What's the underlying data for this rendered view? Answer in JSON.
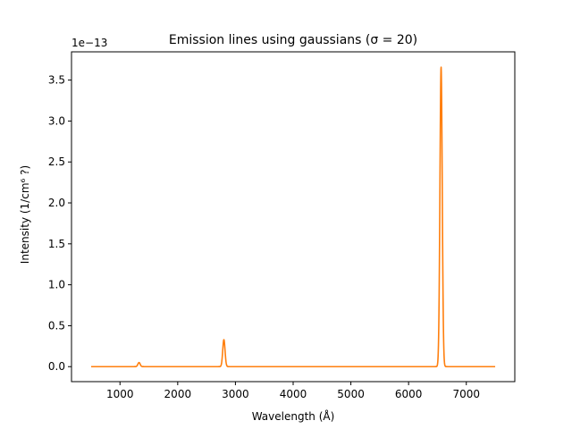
{
  "chart_data": {
    "type": "line",
    "title": "Emission lines using gaussians (σ = 20)",
    "xlabel": "Wavelength (Å)",
    "ylabel": "Intensity (1/cm⁶ ?)",
    "y_offset_label": "1e−13",
    "xlim": [
      160,
      7840
    ],
    "ylim": [
      -0.183,
      3.845
    ],
    "x_ticks": [
      1000,
      2000,
      3000,
      4000,
      5000,
      6000,
      7000
    ],
    "x_tick_labels": [
      "1000",
      "2000",
      "3000",
      "4000",
      "5000",
      "6000",
      "7000"
    ],
    "y_ticks": [
      0.0,
      0.5,
      1.0,
      1.5,
      2.0,
      2.5,
      3.0,
      3.5
    ],
    "y_tick_labels": [
      "0.0",
      "0.5",
      "1.0",
      "1.5",
      "2.0",
      "2.5",
      "3.0",
      "3.5"
    ],
    "grid": false,
    "legend": "none",
    "series": [
      {
        "color": "#ff7f0e",
        "x_range": [
          500,
          7500
        ],
        "baseline": 0.0,
        "peaks": [
          {
            "center": 1330,
            "amplitude": 0.05
          },
          {
            "center": 2800,
            "amplitude": 0.33
          },
          {
            "center": 6563,
            "amplitude": 3.66
          }
        ],
        "sigma": 20
      }
    ]
  }
}
